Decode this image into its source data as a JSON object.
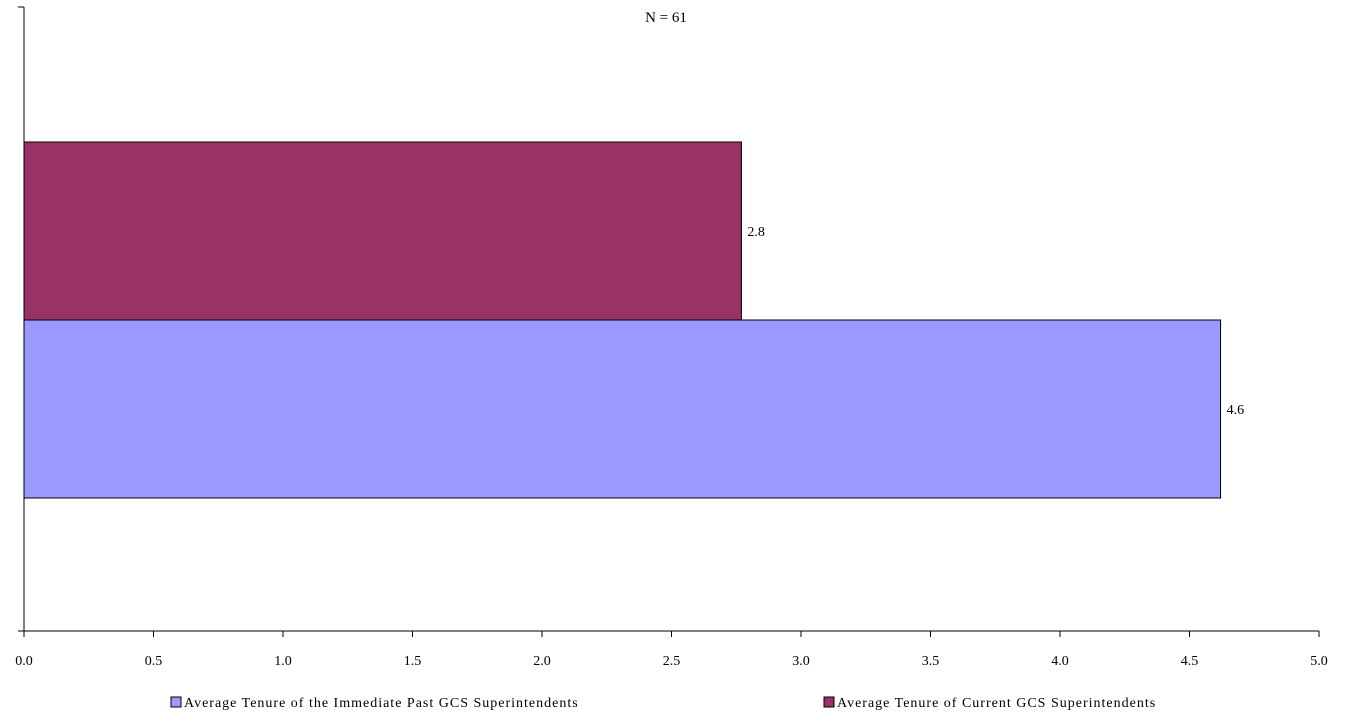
{
  "chart_data": {
    "type": "bar",
    "orientation": "horizontal",
    "subtitle": "N = 61",
    "xlabel": "",
    "ylabel": "",
    "xlim": [
      0,
      5
    ],
    "x_ticks": [
      "0.0",
      "0.5",
      "1.0",
      "1.5",
      "2.0",
      "2.5",
      "3.0",
      "3.5",
      "4.0",
      "4.5",
      "5.0"
    ],
    "grid": false,
    "legend_position": "bottom",
    "series": [
      {
        "name": "Average Tenure of the Immediate Past GCS Superintendents",
        "value": 4.62,
        "label": "4.6",
        "color": "#9999ff"
      },
      {
        "name": "Average Tenure of Current GCS Superintendents",
        "value": 2.77,
        "label": "2.8",
        "color": "#993366"
      }
    ]
  }
}
